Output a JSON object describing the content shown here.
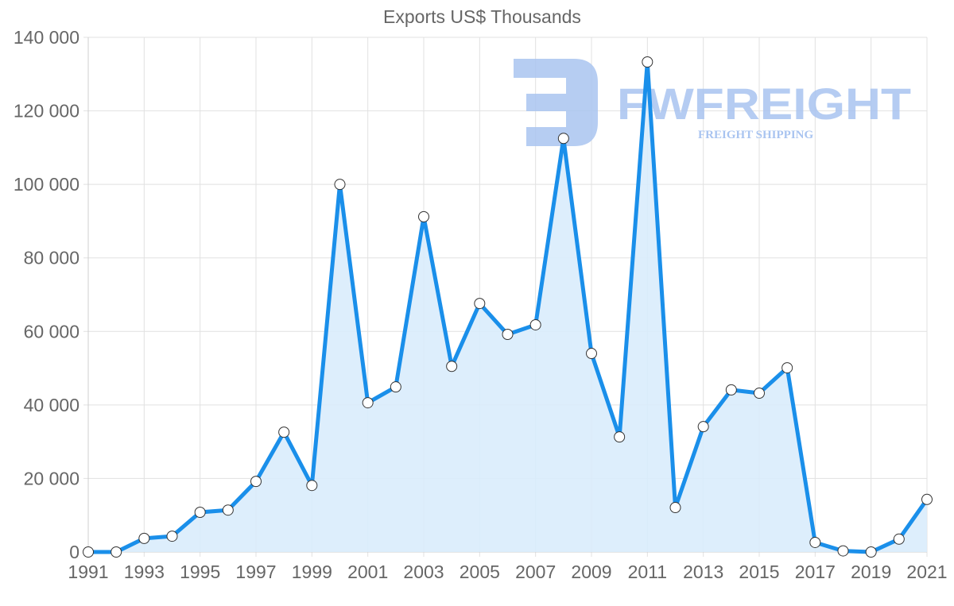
{
  "chart_data": {
    "type": "area",
    "title": "Exports US$ Thousands",
    "xlabel": "",
    "ylabel": "",
    "x": [
      1991,
      1992,
      1993,
      1994,
      1995,
      1996,
      1997,
      1998,
      1999,
      2000,
      2001,
      2002,
      2003,
      2004,
      2005,
      2006,
      2007,
      2008,
      2009,
      2010,
      2011,
      2012,
      2013,
      2014,
      2015,
      2016,
      2017,
      2018,
      2019,
      2020,
      2021
    ],
    "series": [
      {
        "name": "Exports US$ Thousands",
        "values": [
          0,
          0,
          3700,
          4300,
          10800,
          11400,
          19200,
          32600,
          18100,
          100000,
          40600,
          44900,
          91200,
          50500,
          67600,
          59200,
          61800,
          112500,
          54000,
          31300,
          133300,
          12100,
          34100,
          44100,
          43200,
          50100,
          2600,
          300,
          0,
          3500,
          14300
        ]
      }
    ],
    "ylim": [
      0,
      140000
    ],
    "yticks": [
      0,
      20000,
      40000,
      60000,
      80000,
      100000,
      120000,
      140000
    ],
    "ytick_labels": [
      "0",
      "20 000",
      "40 000",
      "60 000",
      "80 000",
      "100 000",
      "120 000",
      "140 000"
    ],
    "xtick_labels": [
      "1991",
      "1993",
      "1995",
      "1997",
      "1999",
      "2001",
      "2003",
      "2005",
      "2007",
      "2009",
      "2011",
      "2013",
      "2015",
      "2017",
      "2019",
      "2021"
    ],
    "grid": true,
    "legend": "none",
    "colors": {
      "line": "#1a8fea",
      "fill": "#d9ecfc",
      "point_fill": "#ffffff",
      "point_stroke": "#333333",
      "grid": "#e1e1e1",
      "text": "#666666"
    }
  },
  "watermark": {
    "brand": "FWFREIGHT",
    "tagline": "FREIGHT SHIPPING",
    "color": "#a9c4f0"
  }
}
